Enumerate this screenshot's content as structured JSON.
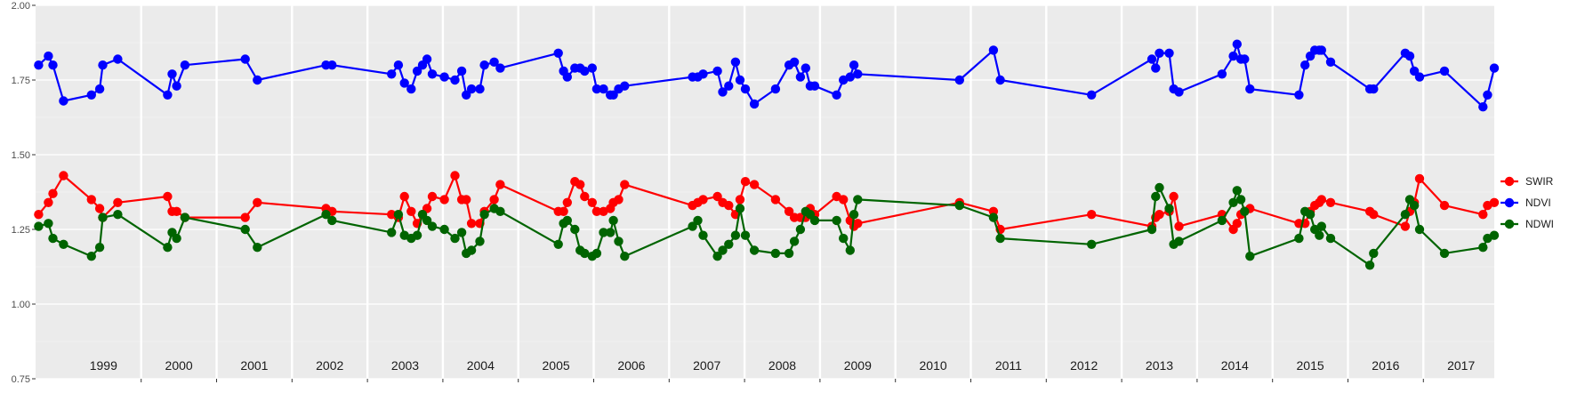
{
  "chart_data": {
    "type": "line",
    "title": "",
    "xlabel": "",
    "ylabel": "",
    "xlim": [
      1998.6,
      2017.94
    ],
    "ylim": [
      0.75,
      2.0
    ],
    "yticks": [
      "0.75",
      "1.00",
      "1.25",
      "1.50",
      "1.75",
      "2.00"
    ],
    "year_labels": [
      "1999",
      "2000",
      "2001",
      "2002",
      "2003",
      "2004",
      "2005",
      "2006",
      "2007",
      "2008",
      "2009",
      "2010",
      "2011",
      "2012",
      "2013",
      "2014",
      "2015",
      "2016",
      "2017"
    ],
    "grid": true,
    "legend_position": "right",
    "series": [
      {
        "name": "SWIR",
        "color": "#ff0000",
        "x": [
          1998.64,
          1998.77,
          1998.83,
          1998.97,
          1999.34,
          1999.45,
          1999.49,
          1999.69,
          2000.35,
          2000.41,
          2000.47,
          2000.58,
          2001.38,
          2001.54,
          2002.45,
          2002.53,
          2003.32,
          2003.41,
          2003.49,
          2003.58,
          2003.66,
          2003.73,
          2003.79,
          2003.86,
          2004.02,
          2004.16,
          2004.25,
          2004.31,
          2004.38,
          2004.49,
          2004.55,
          2004.68,
          2004.76,
          2005.53,
          2005.6,
          2005.65,
          2005.75,
          2005.82,
          2005.88,
          2005.98,
          2006.04,
          2006.13,
          2006.22,
          2006.26,
          2006.33,
          2006.41,
          2007.31,
          2007.38,
          2007.45,
          2007.64,
          2007.71,
          2007.79,
          2007.88,
          2007.94,
          2008.01,
          2008.13,
          2008.41,
          2008.59,
          2008.66,
          2008.74,
          2008.81,
          2008.87,
          2008.93,
          2009.22,
          2009.31,
          2009.4,
          2009.45,
          2009.5,
          2010.85,
          2011.3,
          2011.39,
          2012.6,
          2013.4,
          2013.45,
          2013.5,
          2013.63,
          2013.69,
          2013.76,
          2014.33,
          2014.48,
          2014.53,
          2014.58,
          2014.63,
          2014.7,
          2015.35,
          2015.43,
          2015.5,
          2015.56,
          2015.62,
          2015.65,
          2015.77,
          2016.29,
          2016.34,
          2016.76,
          2016.82,
          2016.88,
          2016.95,
          2017.28,
          2017.79,
          2017.85,
          2017.94
        ],
        "values": [
          1.3,
          1.34,
          1.37,
          1.43,
          1.35,
          1.32,
          1.29,
          1.34,
          1.36,
          1.31,
          1.31,
          1.29,
          1.29,
          1.34,
          1.32,
          1.31,
          1.3,
          1.29,
          1.36,
          1.31,
          1.27,
          1.3,
          1.32,
          1.36,
          1.35,
          1.43,
          1.35,
          1.35,
          1.27,
          1.27,
          1.31,
          1.35,
          1.4,
          1.31,
          1.31,
          1.34,
          1.41,
          1.4,
          1.36,
          1.34,
          1.31,
          1.31,
          1.32,
          1.34,
          1.35,
          1.4,
          1.33,
          1.34,
          1.35,
          1.36,
          1.34,
          1.33,
          1.3,
          1.35,
          1.41,
          1.4,
          1.35,
          1.31,
          1.29,
          1.29,
          1.29,
          1.32,
          1.3,
          1.36,
          1.35,
          1.28,
          1.26,
          1.27,
          1.34,
          1.31,
          1.25,
          1.3,
          1.26,
          1.29,
          1.3,
          1.31,
          1.36,
          1.26,
          1.3,
          1.25,
          1.27,
          1.3,
          1.31,
          1.32,
          1.27,
          1.27,
          1.31,
          1.33,
          1.34,
          1.35,
          1.34,
          1.31,
          1.3,
          1.26,
          1.31,
          1.34,
          1.42,
          1.33,
          1.3,
          1.33,
          1.34
        ]
      },
      {
        "name": "NDVI",
        "color": "#0000ff",
        "x": [
          1998.64,
          1998.77,
          1998.83,
          1998.97,
          1999.34,
          1999.45,
          1999.49,
          1999.69,
          2000.35,
          2000.41,
          2000.47,
          2000.58,
          2001.38,
          2001.54,
          2002.45,
          2002.53,
          2003.32,
          2003.41,
          2003.49,
          2003.58,
          2003.66,
          2003.73,
          2003.79,
          2003.86,
          2004.02,
          2004.16,
          2004.25,
          2004.31,
          2004.38,
          2004.49,
          2004.55,
          2004.68,
          2004.76,
          2005.53,
          2005.6,
          2005.65,
          2005.75,
          2005.82,
          2005.88,
          2005.98,
          2006.04,
          2006.13,
          2006.22,
          2006.26,
          2006.33,
          2006.41,
          2007.31,
          2007.38,
          2007.45,
          2007.64,
          2007.71,
          2007.79,
          2007.88,
          2007.94,
          2008.01,
          2008.13,
          2008.41,
          2008.59,
          2008.66,
          2008.74,
          2008.81,
          2008.87,
          2008.93,
          2009.22,
          2009.31,
          2009.4,
          2009.45,
          2009.5,
          2010.85,
          2011.3,
          2011.39,
          2012.6,
          2013.4,
          2013.45,
          2013.5,
          2013.63,
          2013.69,
          2013.76,
          2014.33,
          2014.48,
          2014.53,
          2014.58,
          2014.63,
          2014.7,
          2015.35,
          2015.43,
          2015.5,
          2015.56,
          2015.62,
          2015.65,
          2015.77,
          2016.29,
          2016.34,
          2016.76,
          2016.82,
          2016.88,
          2016.95,
          2017.28,
          2017.79,
          2017.85,
          2017.94
        ],
        "values": [
          1.8,
          1.83,
          1.8,
          1.68,
          1.7,
          1.72,
          1.8,
          1.82,
          1.7,
          1.77,
          1.73,
          1.8,
          1.82,
          1.75,
          1.8,
          1.8,
          1.77,
          1.8,
          1.74,
          1.72,
          1.78,
          1.8,
          1.82,
          1.77,
          1.76,
          1.75,
          1.78,
          1.7,
          1.72,
          1.72,
          1.8,
          1.81,
          1.79,
          1.84,
          1.78,
          1.76,
          1.79,
          1.79,
          1.78,
          1.79,
          1.72,
          1.72,
          1.7,
          1.7,
          1.72,
          1.73,
          1.76,
          1.76,
          1.77,
          1.78,
          1.71,
          1.73,
          1.81,
          1.75,
          1.72,
          1.67,
          1.72,
          1.8,
          1.81,
          1.76,
          1.79,
          1.73,
          1.73,
          1.7,
          1.75,
          1.76,
          1.8,
          1.77,
          1.75,
          1.85,
          1.75,
          1.7,
          1.82,
          1.79,
          1.84,
          1.84,
          1.72,
          1.71,
          1.77,
          1.83,
          1.87,
          1.82,
          1.82,
          1.72,
          1.7,
          1.8,
          1.83,
          1.85,
          1.85,
          1.85,
          1.81,
          1.72,
          1.72,
          1.84,
          1.83,
          1.78,
          1.76,
          1.78,
          1.66,
          1.7,
          1.79
        ]
      },
      {
        "name": "NDWI",
        "color": "#006400",
        "x": [
          1998.64,
          1998.77,
          1998.83,
          1998.97,
          1999.34,
          1999.45,
          1999.49,
          1999.69,
          2000.35,
          2000.41,
          2000.47,
          2000.58,
          2001.38,
          2001.54,
          2002.45,
          2002.53,
          2003.32,
          2003.41,
          2003.49,
          2003.58,
          2003.66,
          2003.73,
          2003.79,
          2003.86,
          2004.02,
          2004.16,
          2004.25,
          2004.31,
          2004.38,
          2004.49,
          2004.55,
          2004.68,
          2004.76,
          2005.53,
          2005.6,
          2005.65,
          2005.75,
          2005.82,
          2005.88,
          2005.98,
          2006.04,
          2006.13,
          2006.22,
          2006.26,
          2006.33,
          2006.41,
          2007.31,
          2007.38,
          2007.45,
          2007.64,
          2007.71,
          2007.79,
          2007.88,
          2007.94,
          2008.01,
          2008.13,
          2008.41,
          2008.59,
          2008.66,
          2008.74,
          2008.81,
          2008.87,
          2008.93,
          2009.22,
          2009.31,
          2009.4,
          2009.45,
          2009.5,
          2010.85,
          2011.3,
          2011.39,
          2012.6,
          2013.4,
          2013.45,
          2013.5,
          2013.63,
          2013.69,
          2013.76,
          2014.33,
          2014.48,
          2014.53,
          2014.58,
          2014.63,
          2014.7,
          2015.35,
          2015.43,
          2015.5,
          2015.56,
          2015.62,
          2015.65,
          2015.77,
          2016.29,
          2016.34,
          2016.76,
          2016.82,
          2016.88,
          2016.95,
          2017.28,
          2017.79,
          2017.85,
          2017.94
        ],
        "values": [
          1.26,
          1.27,
          1.22,
          1.2,
          1.16,
          1.19,
          1.29,
          1.3,
          1.19,
          1.24,
          1.22,
          1.29,
          1.25,
          1.19,
          1.3,
          1.28,
          1.24,
          1.3,
          1.23,
          1.22,
          1.23,
          1.3,
          1.28,
          1.26,
          1.25,
          1.22,
          1.24,
          1.17,
          1.18,
          1.21,
          1.3,
          1.32,
          1.31,
          1.2,
          1.27,
          1.28,
          1.25,
          1.18,
          1.17,
          1.16,
          1.17,
          1.24,
          1.24,
          1.28,
          1.21,
          1.16,
          1.26,
          1.28,
          1.23,
          1.16,
          1.18,
          1.2,
          1.23,
          1.32,
          1.23,
          1.18,
          1.17,
          1.17,
          1.21,
          1.25,
          1.31,
          1.3,
          1.28,
          1.28,
          1.22,
          1.18,
          1.3,
          1.35,
          1.33,
          1.29,
          1.22,
          1.2,
          1.25,
          1.36,
          1.39,
          1.32,
          1.2,
          1.21,
          1.28,
          1.34,
          1.38,
          1.35,
          1.31,
          1.16,
          1.22,
          1.31,
          1.3,
          1.25,
          1.23,
          1.26,
          1.22,
          1.13,
          1.17,
          1.3,
          1.35,
          1.33,
          1.25,
          1.17,
          1.19,
          1.22,
          1.23
        ]
      }
    ]
  }
}
